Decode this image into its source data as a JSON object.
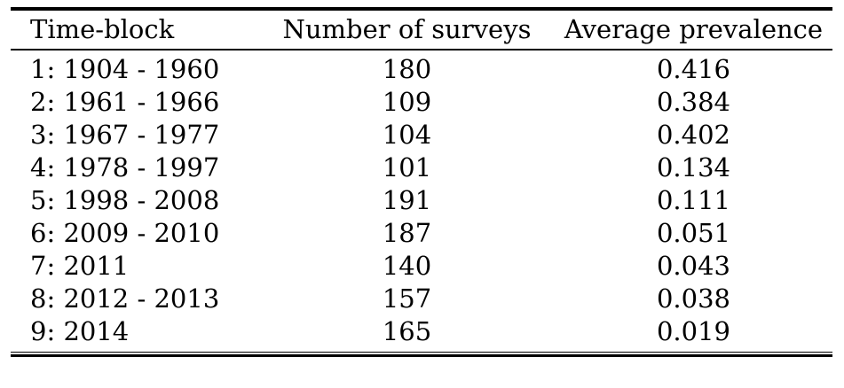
{
  "table": {
    "headers": [
      "Time-block",
      "Number of surveys",
      "Average prevalence"
    ],
    "rows": [
      [
        "1: 1904 - 1960",
        "180",
        "0.416"
      ],
      [
        "2: 1961 - 1966",
        "109",
        "0.384"
      ],
      [
        "3: 1967 - 1977",
        "104",
        "0.402"
      ],
      [
        "4: 1978 - 1997",
        "101",
        "0.134"
      ],
      [
        "5: 1998 - 2008",
        "191",
        "0.111"
      ],
      [
        "6: 2009 - 2010",
        "187",
        "0.051"
      ],
      [
        "7: 2011",
        "140",
        "0.043"
      ],
      [
        "8: 2012 - 2013",
        "157",
        "0.038"
      ],
      [
        "9: 2014",
        "165",
        "0.019"
      ]
    ]
  }
}
